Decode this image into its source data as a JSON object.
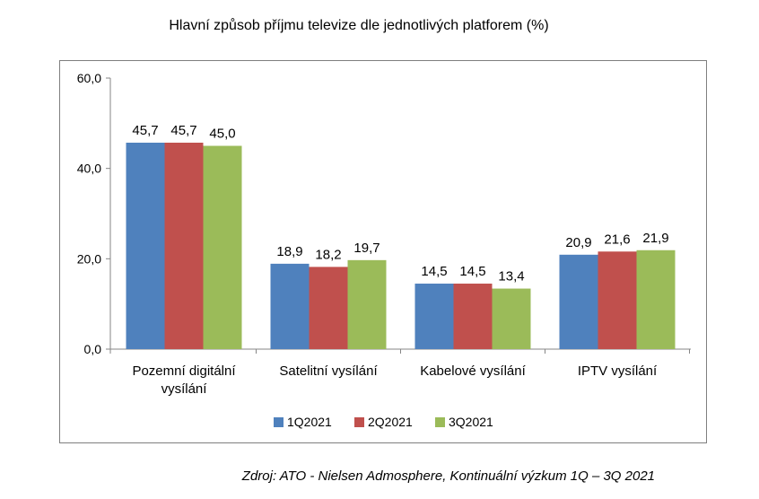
{
  "chart_data": {
    "type": "bar",
    "title": "Hlavní způsob příjmu televize dle jednotlivých platforem (%)",
    "categories": [
      [
        "Pozemní digitální",
        "vysílání"
      ],
      [
        "Satelitní vysílání"
      ],
      [
        "Kabelové  vysílání"
      ],
      [
        "IPTV vysílání"
      ]
    ],
    "series": [
      {
        "name": "1Q2021",
        "color": "#4f81bd",
        "values": [
          45.7,
          18.9,
          14.5,
          20.9
        ],
        "labels": [
          "45,7",
          "18,9",
          "14,5",
          "20,9"
        ]
      },
      {
        "name": "2Q2021",
        "color": "#c0504d",
        "values": [
          45.7,
          18.2,
          14.5,
          21.6
        ],
        "labels": [
          "45,7",
          "18,2",
          "14,5",
          "21,6"
        ]
      },
      {
        "name": "3Q2021",
        "color": "#9bbb59",
        "values": [
          45.0,
          19.7,
          13.4,
          21.9
        ],
        "labels": [
          "45,0",
          "19,7",
          "13,4",
          "21,9"
        ]
      }
    ],
    "ylim": [
      0,
      60
    ],
    "yticks": [
      0,
      20,
      40,
      60
    ],
    "ytick_labels": [
      "0,0",
      "20,0",
      "40,0",
      "60,0"
    ],
    "grid": false,
    "legend_position": "bottom"
  },
  "footer": {
    "source": "Zdroj: ATO - Nielsen Admosphere, Kontinuální výzkum 1Q – 3Q 2021"
  }
}
